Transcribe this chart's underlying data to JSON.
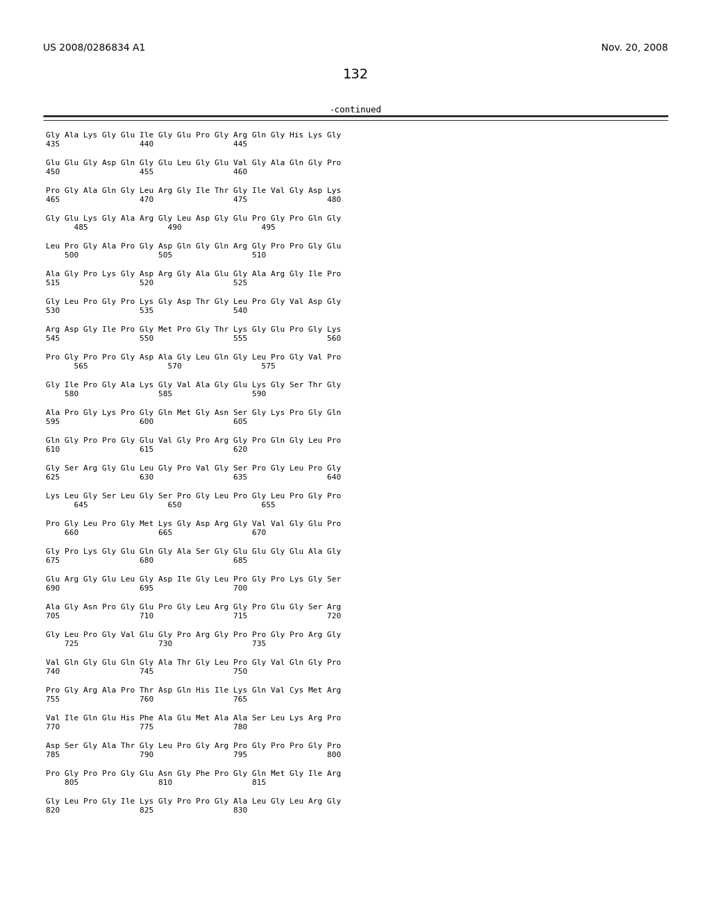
{
  "header_left": "US 2008/0286834 A1",
  "header_right": "Nov. 20, 2008",
  "page_number": "132",
  "continued_label": "-continued",
  "background_color": "#ffffff",
  "text_color": "#000000",
  "sequence_blocks": [
    [
      "Gly Ala Lys Gly Glu Ile Gly Glu Pro Gly Arg Gln Gly His Lys Gly",
      "435                 440                 445"
    ],
    [
      "Glu Glu Gly Asp Gln Gly Glu Leu Gly Glu Val Gly Ala Gln Gly Pro",
      "450                 455                 460"
    ],
    [
      "Pro Gly Ala Gln Gly Leu Arg Gly Ile Thr Gly Ile Val Gly Asp Lys",
      "465                 470                 475                 480"
    ],
    [
      "Gly Glu Lys Gly Ala Arg Gly Leu Asp Gly Glu Pro Gly Pro Gln Gly",
      "      485                 490                 495"
    ],
    [
      "Leu Pro Gly Ala Pro Gly Asp Gln Gly Gln Arg Gly Pro Pro Gly Glu",
      "    500                 505                 510"
    ],
    [
      "Ala Gly Pro Lys Gly Asp Arg Gly Ala Glu Gly Ala Arg Gly Ile Pro",
      "515                 520                 525"
    ],
    [
      "Gly Leu Pro Gly Pro Lys Gly Asp Thr Gly Leu Pro Gly Val Asp Gly",
      "530                 535                 540"
    ],
    [
      "Arg Asp Gly Ile Pro Gly Met Pro Gly Thr Lys Gly Glu Pro Gly Lys",
      "545                 550                 555                 560"
    ],
    [
      "Pro Gly Pro Pro Gly Asp Ala Gly Leu Gln Gly Leu Pro Gly Val Pro",
      "      565                 570                 575"
    ],
    [
      "Gly Ile Pro Gly Ala Lys Gly Val Ala Gly Glu Lys Gly Ser Thr Gly",
      "    580                 585                 590"
    ],
    [
      "Ala Pro Gly Lys Pro Gly Gln Met Gly Asn Ser Gly Lys Pro Gly Gln",
      "595                 600                 605"
    ],
    [
      "Gln Gly Pro Pro Gly Glu Val Gly Pro Arg Gly Pro Gln Gly Leu Pro",
      "610                 615                 620"
    ],
    [
      "Gly Ser Arg Gly Glu Leu Gly Pro Val Gly Ser Pro Gly Leu Pro Gly",
      "625                 630                 635                 640"
    ],
    [
      "Lys Leu Gly Ser Leu Gly Ser Pro Gly Leu Pro Gly Leu Pro Gly Pro",
      "      645                 650                 655"
    ],
    [
      "Pro Gly Leu Pro Gly Met Lys Gly Asp Arg Gly Val Val Gly Glu Pro",
      "    660                 665                 670"
    ],
    [
      "Gly Pro Lys Gly Glu Gln Gly Ala Ser Gly Glu Glu Gly Glu Ala Gly",
      "675                 680                 685"
    ],
    [
      "Glu Arg Gly Glu Leu Gly Asp Ile Gly Leu Pro Gly Pro Lys Gly Ser",
      "690                 695                 700"
    ],
    [
      "Ala Gly Asn Pro Gly Glu Pro Gly Leu Arg Gly Pro Glu Gly Ser Arg",
      "705                 710                 715                 720"
    ],
    [
      "Gly Leu Pro Gly Val Glu Gly Pro Arg Gly Pro Pro Gly Pro Arg Gly",
      "    725                 730                 735"
    ],
    [
      "Val Gln Gly Glu Gln Gly Ala Thr Gly Leu Pro Gly Val Gln Gly Pro",
      "740                 745                 750"
    ],
    [
      "Pro Gly Arg Ala Pro Thr Asp Gln His Ile Lys Gln Val Cys Met Arg",
      "755                 760                 765"
    ],
    [
      "Val Ile Gln Glu His Phe Ala Glu Met Ala Ala Ser Leu Lys Arg Pro",
      "770                 775                 780"
    ],
    [
      "Asp Ser Gly Ala Thr Gly Leu Pro Gly Arg Pro Gly Pro Pro Gly Pro",
      "785                 790                 795                 800"
    ],
    [
      "Pro Gly Pro Pro Gly Glu Asn Gly Phe Pro Gly Gln Met Gly Ile Arg",
      "    805                 810                 815"
    ],
    [
      "Gly Leu Pro Gly Ile Lys Gly Pro Pro Gly Ala Leu Gly Leu Arg Gly",
      "820                 825                 830"
    ]
  ]
}
